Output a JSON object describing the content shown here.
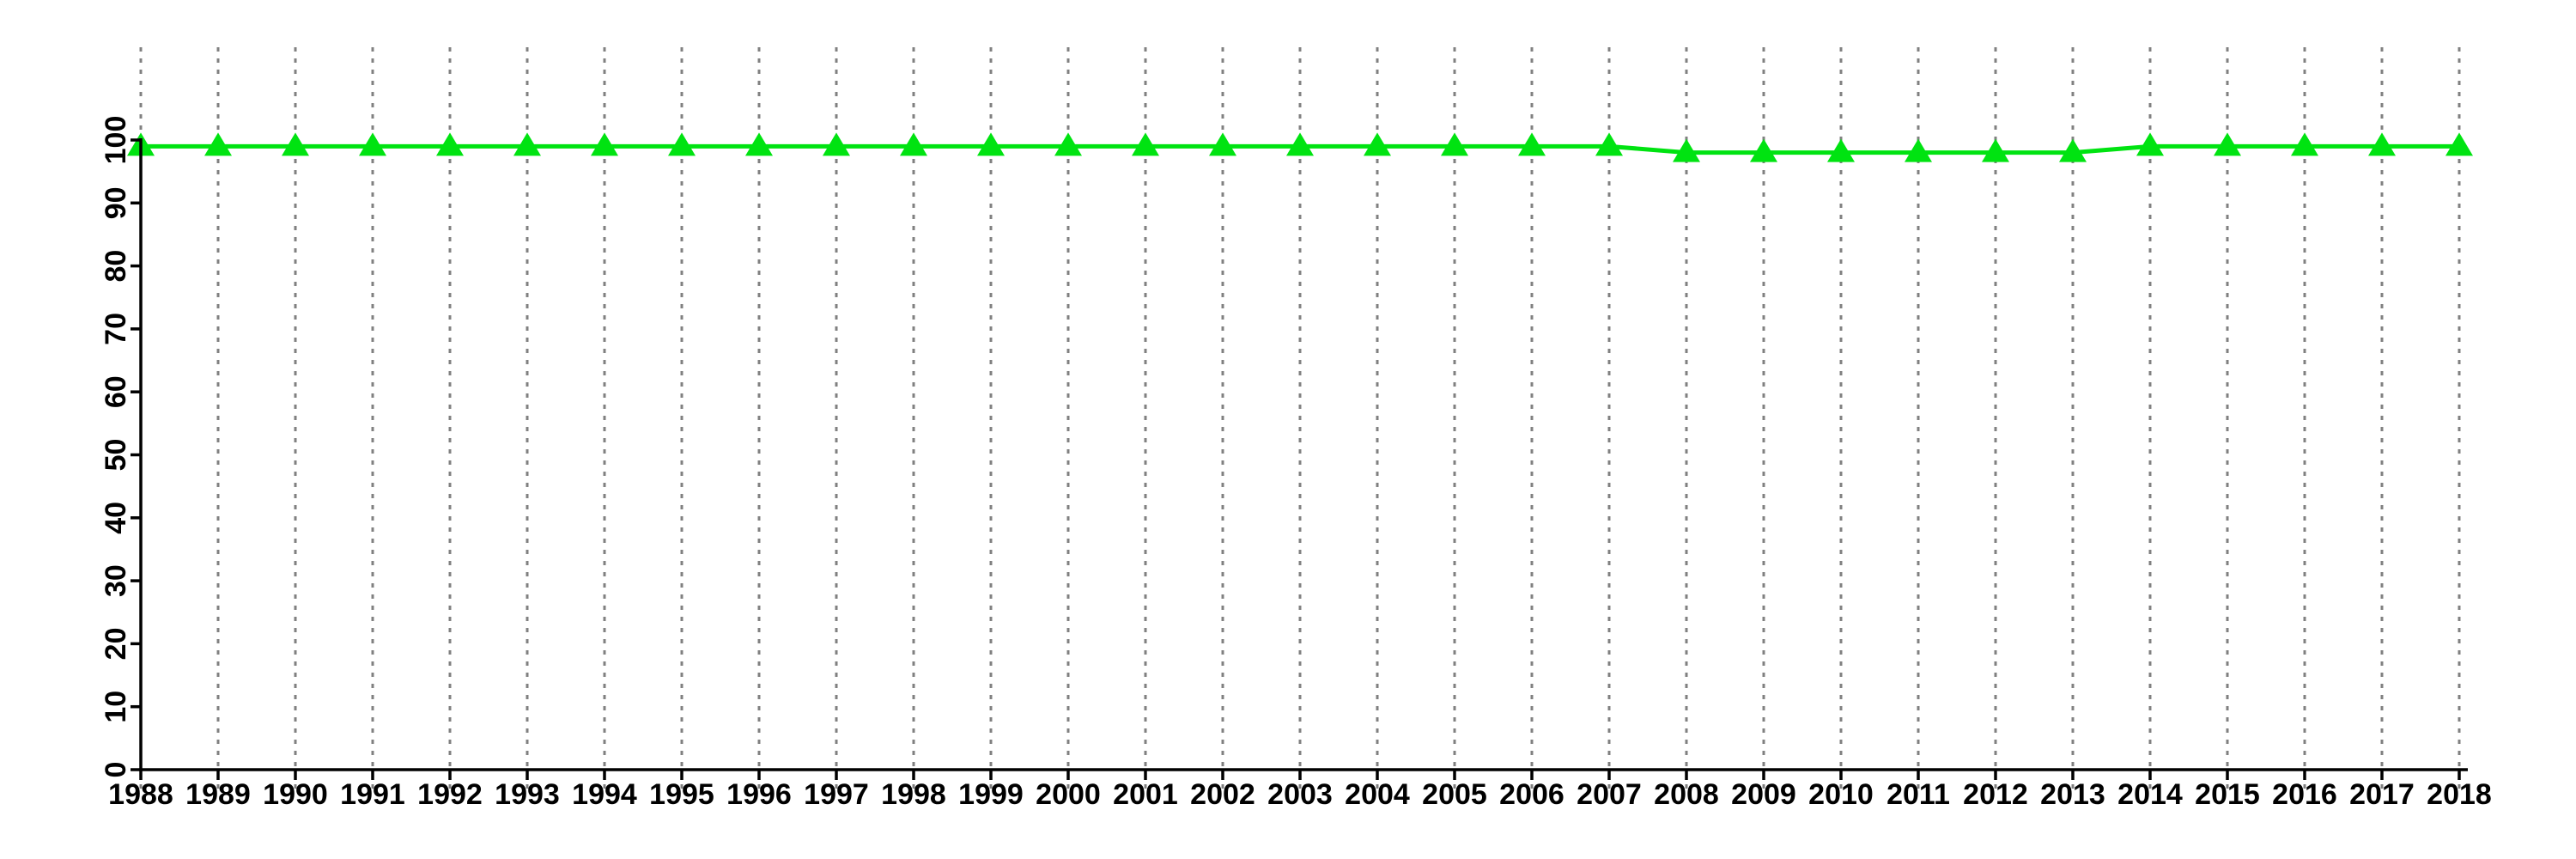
{
  "chart_data": {
    "type": "line",
    "title": "",
    "xlabel": "",
    "ylabel": "",
    "x": [
      1988,
      1989,
      1990,
      1991,
      1992,
      1993,
      1994,
      1995,
      1996,
      1997,
      1998,
      1999,
      2000,
      2001,
      2002,
      2003,
      2004,
      2005,
      2006,
      2007,
      2008,
      2009,
      2010,
      2011,
      2012,
      2013,
      2014,
      2015,
      2016,
      2017,
      2018
    ],
    "x_tick_labels": [
      "1988",
      "1989",
      "1990",
      "1991",
      "1992",
      "1993",
      "1994",
      "1995",
      "1996",
      "1997",
      "1998",
      "1999",
      "2000",
      "2001",
      "2002",
      "2003",
      "2004",
      "2005",
      "2006",
      "2007",
      "2008",
      "2009",
      "2010",
      "2011",
      "2012",
      "2013",
      "2014",
      "2015",
      "2016",
      "2017",
      "2018"
    ],
    "y_tick_labels": [
      "0",
      "10",
      "20",
      "30",
      "40",
      "50",
      "60",
      "70",
      "80",
      "90",
      "100"
    ],
    "yticks": [
      0,
      10,
      20,
      30,
      40,
      50,
      60,
      70,
      80,
      90,
      100
    ],
    "ylim": [
      0,
      100
    ],
    "xlim": [
      1988,
      2018
    ],
    "series": [
      {
        "name": "series-1",
        "marker": "filled-triangle-up",
        "color": "#00E311",
        "values": [
          99,
          99,
          99,
          99,
          99,
          99,
          99,
          99,
          99,
          99,
          99,
          99,
          99,
          99,
          99,
          99,
          99,
          99,
          99,
          99,
          98,
          98,
          98,
          98,
          98,
          98,
          99,
          99,
          99,
          99,
          99
        ]
      }
    ],
    "grid": {
      "vertical": true,
      "horizontal": false,
      "style": "dotted",
      "color": "#808080"
    },
    "legend": "none",
    "axis_color": "#000000",
    "text_color": "#000000",
    "background": "#ffffff"
  }
}
